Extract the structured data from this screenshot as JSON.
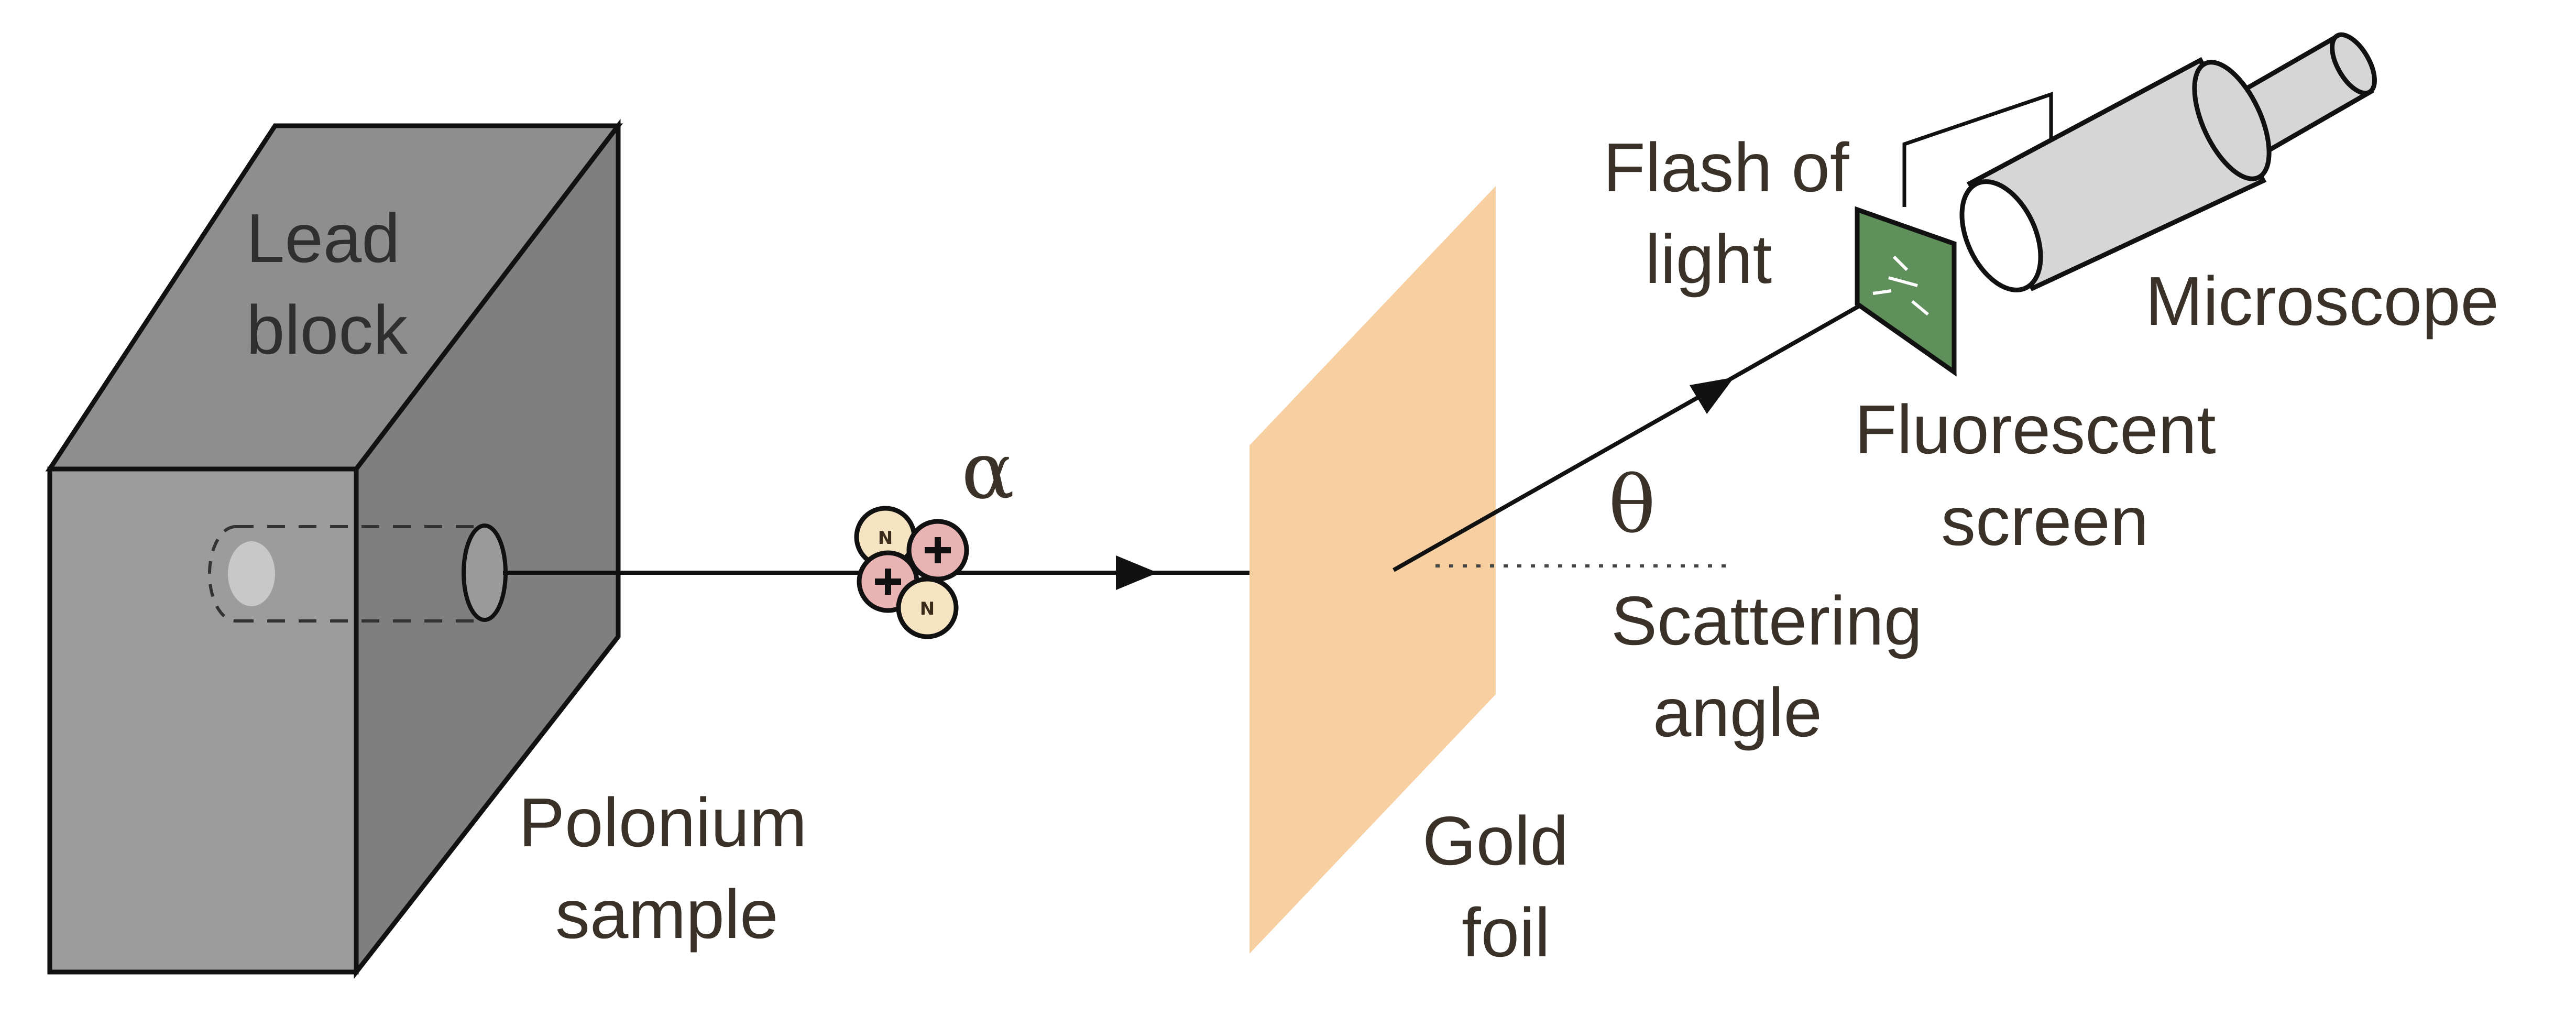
{
  "labels": {
    "lead_block": [
      "Lead",
      "block"
    ],
    "polonium_sample": [
      "Polonium",
      "sample"
    ],
    "alpha": "α",
    "gold_foil": [
      "Gold",
      "foil"
    ],
    "theta": "θ",
    "scattering_angle": [
      "Scattering",
      "angle"
    ],
    "flash_of_light": [
      "Flash of",
      "light"
    ],
    "fluorescent_screen": [
      "Fluorescent",
      "screen"
    ],
    "microscope": "Microscope"
  },
  "alpha_particle": {
    "nucleons": [
      "N",
      "+",
      "+",
      "N"
    ]
  },
  "colors": {
    "lead_front": "#9c9c9c",
    "lead_top": "#8a8a8a",
    "lead_side": "#7e7e7e",
    "gold_foil": "#f7cfa1",
    "screen": "#5f8f5a",
    "microscope_body": "#d6d6d6",
    "proton": "#e9b3b3",
    "neutron": "#f6e3c2",
    "outline": "#111111",
    "label_text": "#3a3228"
  }
}
